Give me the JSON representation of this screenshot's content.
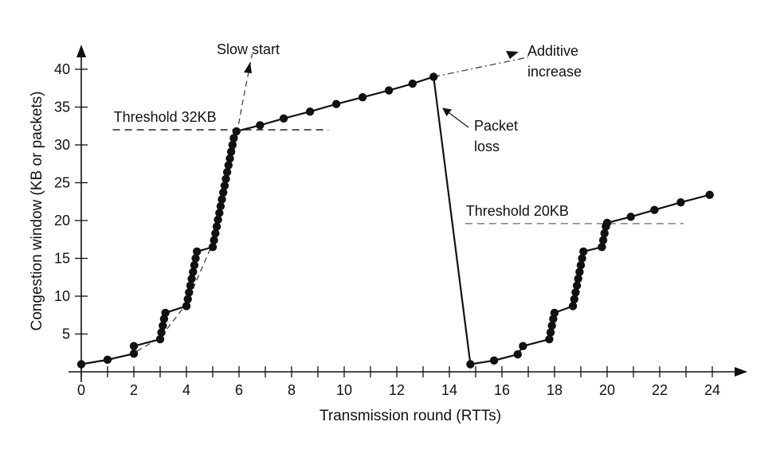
{
  "chart_data": {
    "type": "line",
    "xlabel": "Transmission round (RTTs)",
    "ylabel": "Congestion window (KB or packets)",
    "xlim": [
      0,
      25
    ],
    "ylim": [
      0,
      42
    ],
    "x_ticks": [
      0,
      2,
      4,
      6,
      8,
      10,
      12,
      14,
      16,
      18,
      20,
      22,
      24
    ],
    "y_ticks": [
      5,
      10,
      15,
      20,
      25,
      30,
      35,
      40
    ],
    "grid": false,
    "series": [
      {
        "style": "solid-with-points",
        "points": [
          [
            0,
            1
          ],
          [
            1,
            1.6
          ],
          [
            2,
            2.4
          ],
          [
            2,
            3.4
          ],
          [
            3,
            4.3
          ],
          [
            3.05,
            5.2
          ],
          [
            3.1,
            6.1
          ],
          [
            3.15,
            7.0
          ],
          [
            3.2,
            7.8
          ],
          [
            4,
            8.7
          ],
          [
            4.05,
            9.6
          ],
          [
            4.1,
            10.5
          ],
          [
            4.15,
            11.4
          ],
          [
            4.2,
            12.3
          ],
          [
            4.25,
            13.2
          ],
          [
            4.3,
            14.1
          ],
          [
            4.35,
            15.0
          ],
          [
            4.4,
            15.9
          ],
          [
            5,
            16.5
          ],
          [
            5.05,
            17.4
          ],
          [
            5.1,
            18.3
          ],
          [
            5.15,
            19.2
          ],
          [
            5.2,
            20.1
          ],
          [
            5.25,
            21.0
          ],
          [
            5.3,
            21.9
          ],
          [
            5.35,
            22.8
          ],
          [
            5.4,
            23.7
          ],
          [
            5.45,
            24.6
          ],
          [
            5.5,
            25.5
          ],
          [
            5.55,
            26.4
          ],
          [
            5.6,
            27.3
          ],
          [
            5.65,
            28.2
          ],
          [
            5.7,
            29.1
          ],
          [
            5.75,
            30.0
          ],
          [
            5.8,
            30.9
          ],
          [
            5.9,
            31.8
          ],
          [
            6.8,
            32.6
          ],
          [
            7.7,
            33.5
          ],
          [
            8.7,
            34.4
          ],
          [
            9.7,
            35.4
          ],
          [
            10.7,
            36.3
          ],
          [
            11.7,
            37.2
          ],
          [
            12.6,
            38.1
          ],
          [
            13.4,
            39.0
          ],
          [
            14.8,
            1
          ],
          [
            15.7,
            1.5
          ],
          [
            16.6,
            2.3
          ],
          [
            16.8,
            3.4
          ],
          [
            17.8,
            4.3
          ],
          [
            17.85,
            5.2
          ],
          [
            17.9,
            6.1
          ],
          [
            17.95,
            7.0
          ],
          [
            18,
            7.8
          ],
          [
            18.7,
            8.7
          ],
          [
            18.75,
            9.6
          ],
          [
            18.8,
            10.5
          ],
          [
            18.85,
            11.4
          ],
          [
            18.9,
            12.3
          ],
          [
            18.95,
            13.2
          ],
          [
            19,
            14.1
          ],
          [
            19.05,
            15.0
          ],
          [
            19.1,
            15.9
          ],
          [
            19.8,
            16.5
          ],
          [
            19.85,
            17.4
          ],
          [
            19.9,
            18.3
          ],
          [
            19.95,
            19.2
          ],
          [
            20,
            19.7
          ],
          [
            20.9,
            20.5
          ],
          [
            21.8,
            21.4
          ],
          [
            22.8,
            22.4
          ],
          [
            23.9,
            23.4
          ]
        ]
      }
    ],
    "reference_curves": [
      {
        "name": "slow-start-curve",
        "style": "dashed",
        "points": [
          [
            0,
            1
          ],
          [
            1,
            1.5
          ],
          [
            2,
            2.5
          ],
          [
            3,
            4.5
          ],
          [
            4,
            9
          ],
          [
            5,
            17
          ],
          [
            5.8,
            29
          ],
          [
            6.1,
            35
          ],
          [
            6.5,
            42
          ]
        ]
      },
      {
        "name": "additive-increase-arrow",
        "style": "dash-dot",
        "points": [
          [
            13.4,
            39.0
          ],
          [
            17,
            41.6
          ]
        ]
      }
    ],
    "thresholds": [
      {
        "label": "Threshold 32KB",
        "y": 32,
        "x_start": 1.2,
        "x_end": 9.4,
        "style": "dashed",
        "color": "#222222"
      },
      {
        "label": "Threshold 20KB",
        "y": 19.6,
        "x_start": 14.6,
        "x_end": 22.9,
        "style": "dashed",
        "color": "#888888"
      }
    ],
    "annotations": [
      {
        "text": "Slow start"
      },
      {
        "text": "Additive"
      },
      {
        "text": "increase"
      },
      {
        "text": "Packet"
      },
      {
        "text": "loss"
      }
    ]
  }
}
